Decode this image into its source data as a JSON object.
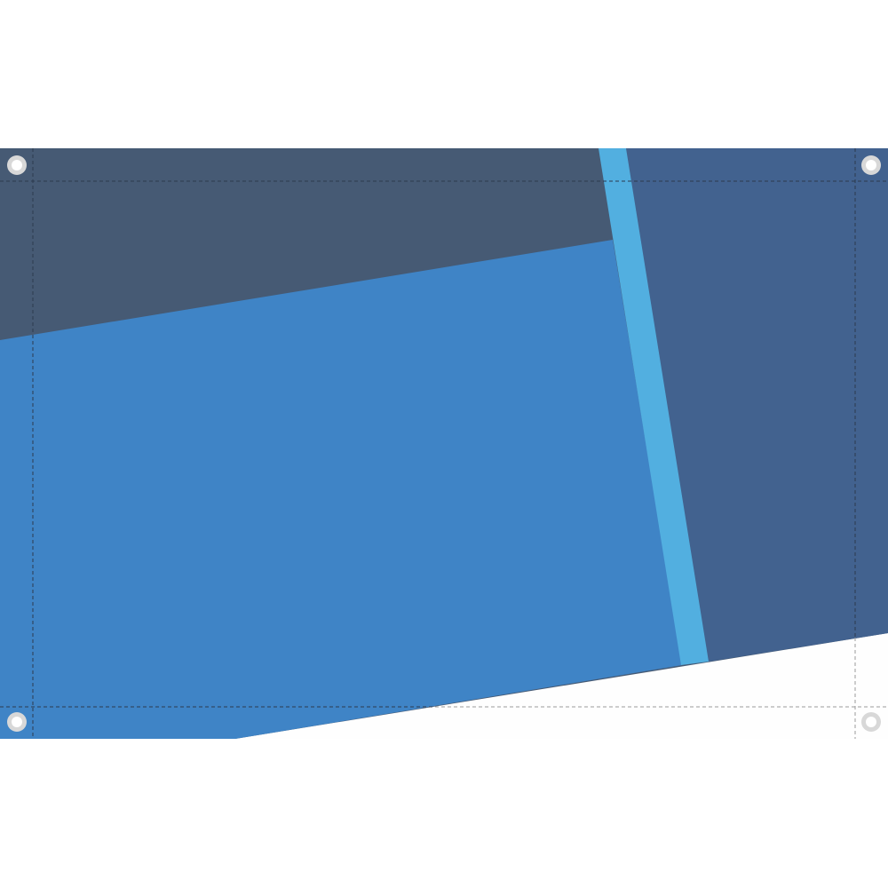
{
  "banner": {
    "colors": {
      "background": "#ffffff",
      "dark_slate": "#465a74",
      "steel_blue": "#42628f",
      "medium_blue": "#3f84c6",
      "sky_stripe": "#52afe0",
      "bottom_white": "#fefefe",
      "seam_line_dark": "#2c3a4e",
      "seam_line_light": "#9a9a9a",
      "grommet_ring": "#d8d8d8",
      "grommet_hole": "#ffffff"
    },
    "grommet_icons": [
      "grommet-icon",
      "grommet-icon",
      "grommet-icon",
      "grommet-icon"
    ]
  }
}
